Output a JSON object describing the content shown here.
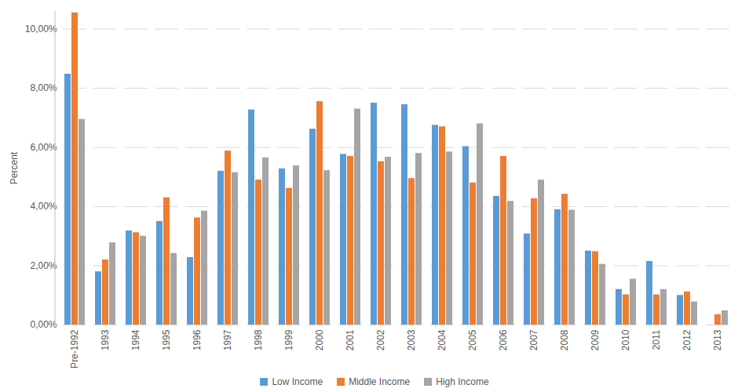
{
  "chart_data": {
    "type": "bar",
    "y_label": "Percent",
    "categories": [
      "Pre-1992",
      "1993",
      "1994",
      "1995",
      "1996",
      "1997",
      "1998",
      "1999",
      "2000",
      "2001",
      "2002",
      "2003",
      "2004",
      "2005",
      "2006",
      "2007",
      "2008",
      "2009",
      "2010",
      "2011",
      "2012",
      "2013"
    ],
    "series": [
      {
        "name": "Low Income",
        "color": "#5b9bd5",
        "values": [
          8.48,
          1.8,
          3.18,
          3.5,
          2.28,
          5.2,
          7.27,
          5.28,
          6.62,
          5.77,
          7.5,
          7.45,
          6.75,
          6.03,
          4.35,
          3.08,
          3.9,
          2.5,
          1.2,
          2.15,
          1.0,
          null
        ]
      },
      {
        "name": "Middle Income",
        "color": "#ed7d31",
        "values": [
          10.55,
          2.2,
          3.12,
          4.3,
          3.62,
          5.88,
          4.9,
          4.62,
          7.55,
          5.7,
          5.52,
          4.95,
          6.7,
          4.8,
          5.7,
          4.27,
          4.42,
          2.48,
          1.02,
          1.02,
          1.12,
          0.35
        ]
      },
      {
        "name": "High Income",
        "color": "#a5a5a5",
        "values": [
          6.95,
          2.78,
          3.0,
          2.42,
          3.85,
          5.15,
          5.65,
          5.38,
          5.22,
          7.3,
          5.67,
          5.8,
          5.85,
          6.8,
          4.18,
          4.9,
          3.88,
          2.05,
          1.55,
          1.2,
          0.78,
          0.48
        ]
      }
    ],
    "ylim": [
      0,
      10.6
    ],
    "yticks": [
      {
        "value": 0,
        "label": "0,00%"
      },
      {
        "value": 2,
        "label": "2,00%"
      },
      {
        "value": 4,
        "label": "4,00%"
      },
      {
        "value": 6,
        "label": "6,00%"
      },
      {
        "value": 8,
        "label": "8,00%"
      },
      {
        "value": 10,
        "label": "10,00%"
      }
    ],
    "grid": true,
    "legend": "bottom"
  }
}
